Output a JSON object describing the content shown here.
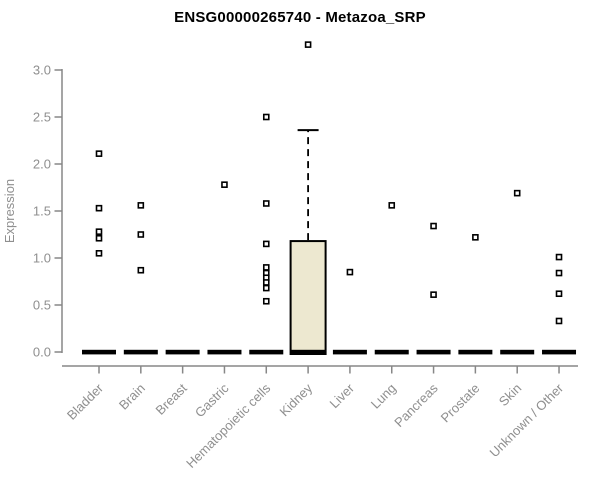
{
  "chart_data": {
    "type": "boxplot",
    "title": "ENSG00000265740 - Metazoa_SRP",
    "ylabel": "Expression",
    "xlabel": "",
    "ylim": [
      0,
      3.3
    ],
    "yticks": [
      0.0,
      0.5,
      1.0,
      1.5,
      2.0,
      2.5,
      3.0
    ],
    "grid": "off",
    "legend": "none",
    "marker": "open-square",
    "categories": [
      "Bladder",
      "Brain",
      "Breast",
      "Gastric",
      "Hematopoietic cells",
      "Kidney",
      "Liver",
      "Lung",
      "Pancreas",
      "Prostate",
      "Skin",
      "Unknown / Other"
    ],
    "series": [
      {
        "category": "Bladder",
        "median": 0.0,
        "points": [
          2.11,
          1.53,
          1.28,
          1.21,
          1.05
        ]
      },
      {
        "category": "Brain",
        "median": 0.0,
        "points": [
          1.56,
          1.25,
          0.87
        ]
      },
      {
        "category": "Breast",
        "median": 0.0,
        "points": []
      },
      {
        "category": "Gastric",
        "median": 0.0,
        "points": [
          1.78
        ]
      },
      {
        "category": "Hematopoietic cells",
        "median": 0.0,
        "points": [
          2.5,
          1.58,
          1.15,
          0.9,
          0.84,
          0.79,
          0.74,
          0.68,
          0.54
        ]
      },
      {
        "category": "Kidney",
        "median": 0.0,
        "q1": 0.0,
        "q3": 1.18,
        "whisker_high": 2.36,
        "points": [
          3.27
        ]
      },
      {
        "category": "Liver",
        "median": 0.0,
        "points": [
          0.85
        ]
      },
      {
        "category": "Lung",
        "median": 0.0,
        "points": [
          1.56
        ]
      },
      {
        "category": "Pancreas",
        "median": 0.0,
        "points": [
          1.34,
          0.61
        ]
      },
      {
        "category": "Prostate",
        "median": 0.0,
        "points": [
          1.22
        ]
      },
      {
        "category": "Skin",
        "median": 0.0,
        "points": [
          1.69
        ]
      },
      {
        "category": "Unknown / Other",
        "median": 0.0,
        "points": [
          1.01,
          0.84,
          0.62,
          0.33
        ]
      }
    ],
    "colors": {
      "box_fill": "#ede8d0",
      "box_stroke": "#000000",
      "median_bar": "#000000",
      "point_stroke": "#000000",
      "point_fill": "#ffffff",
      "axis": "#878787",
      "tick_label": "#8f8f8f",
      "title": "#000000"
    }
  }
}
